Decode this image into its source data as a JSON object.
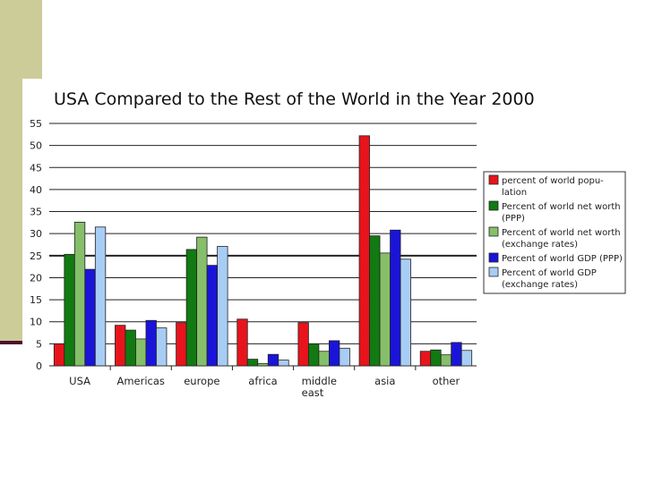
{
  "chart_data": {
    "type": "bar",
    "title": "USA Compared to the Rest of the World in the Year 2000",
    "xlabel": "",
    "ylabel": "",
    "ylim": [
      0,
      55
    ],
    "yticks": [
      0,
      5,
      10,
      15,
      20,
      25,
      30,
      35,
      40,
      45,
      50,
      55
    ],
    "grid": true,
    "legend_position": "right",
    "categories": [
      "USA",
      "Americas",
      "europe",
      "africa",
      "middle east",
      "asia",
      "other"
    ],
    "category_lines": [
      [
        "USA"
      ],
      [
        "Americas"
      ],
      [
        "europe"
      ],
      [
        "africa"
      ],
      [
        "middle",
        "east"
      ],
      [
        "asia"
      ],
      [
        "other"
      ]
    ],
    "series": [
      {
        "name": "percent of world population",
        "legend_lines": [
          "percent of world popu-",
          "lation"
        ],
        "color": "#e8141c",
        "values": [
          5,
          9.2,
          9.8,
          10.6,
          9.8,
          52.2,
          3.3
        ]
      },
      {
        "name": "Percent of world net worth (PPP)",
        "legend_lines": [
          "Percent of world net worth",
          "(PPP)"
        ],
        "color": "#127a12",
        "values": [
          25.3,
          8.1,
          26.4,
          1.5,
          5,
          29.5,
          3.6
        ]
      },
      {
        "name": "Percent of world net worth (exchange rates)",
        "legend_lines": [
          "Percent of world net worth",
          "(exchange rates)"
        ],
        "color": "#86bf6a",
        "values": [
          32.6,
          6.1,
          29.2,
          0.5,
          3.3,
          25.6,
          2.5
        ]
      },
      {
        "name": "Percent of world GDP (PPP)",
        "legend_lines": [
          "Percent of world GDP (PPP)"
        ],
        "color": "#1a14d9",
        "values": [
          21.9,
          10.3,
          22.8,
          2.6,
          5.7,
          30.8,
          5.3
        ]
      },
      {
        "name": "Percent of world GDP (exchange rates)",
        "legend_lines": [
          "Percent of world GDP",
          "(exchange rates)"
        ],
        "color": "#a8cdf5",
        "values": [
          31.5,
          8.6,
          27.1,
          1.3,
          4,
          24.2,
          3.5
        ]
      }
    ]
  }
}
